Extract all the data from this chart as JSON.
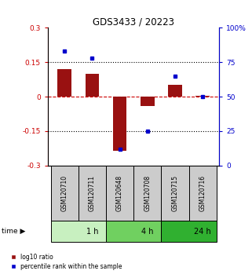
{
  "title": "GDS3433 / 20223",
  "samples": [
    "GSM120710",
    "GSM120711",
    "GSM120648",
    "GSM120708",
    "GSM120715",
    "GSM120716"
  ],
  "log10_ratio": [
    0.12,
    0.1,
    -0.235,
    -0.04,
    0.05,
    0.002
  ],
  "percentile_rank": [
    83,
    78,
    12,
    25,
    65,
    50
  ],
  "time_groups": [
    {
      "label": "1 h",
      "start": 0,
      "end": 2,
      "color": "#c8f0c0"
    },
    {
      "label": "4 h",
      "start": 2,
      "end": 4,
      "color": "#70d060"
    },
    {
      "label": "24 h",
      "start": 4,
      "end": 6,
      "color": "#30b030"
    }
  ],
  "bar_color": "#991111",
  "dot_color": "#0000CC",
  "ylim": [
    -0.3,
    0.3
  ],
  "y2lim": [
    0,
    100
  ],
  "yticks_left": [
    -0.3,
    -0.15,
    0,
    0.15,
    0.3
  ],
  "yticks_right": [
    0,
    25,
    50,
    75,
    100
  ],
  "hlines": [
    -0.15,
    0.15
  ],
  "zero_line_color": "#CC0000",
  "label_area_color": "#cccccc",
  "bar_width": 0.5,
  "legend_items": [
    "log10 ratio",
    "percentile rank within the sample"
  ]
}
